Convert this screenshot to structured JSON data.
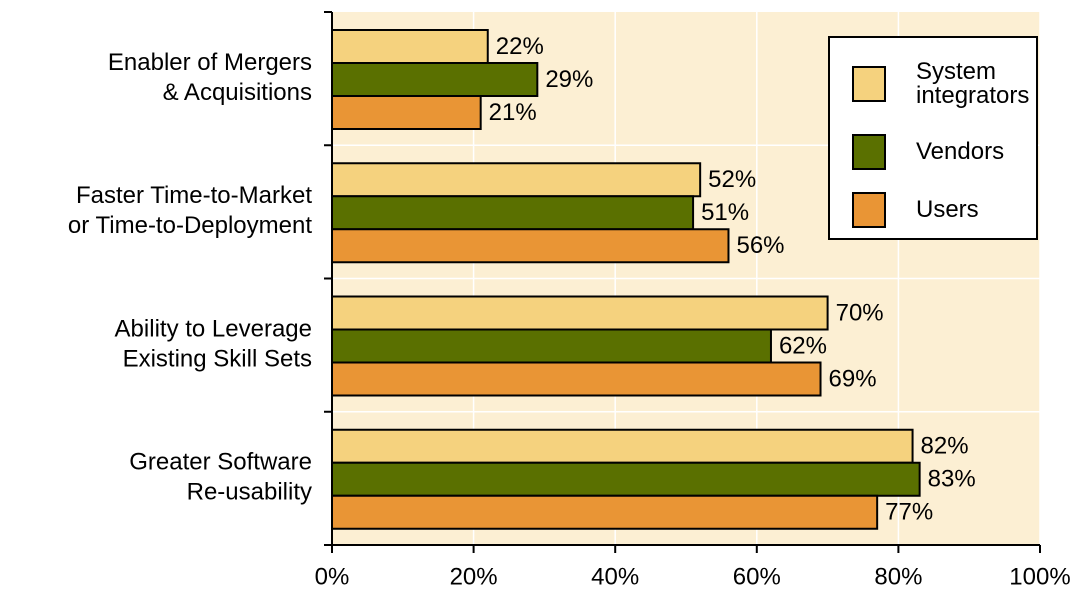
{
  "chart_data": {
    "type": "hbar",
    "categories": [
      [
        "Enabler of Mergers",
        "& Acquisitions"
      ],
      [
        "Faster Time-to-Market",
        "or Time-to-Deployment"
      ],
      [
        "Ability to Leverage",
        "Existing Skill Sets"
      ],
      [
        "Greater Software",
        "Re-usability"
      ]
    ],
    "series": [
      {
        "name": "System integrators",
        "color": "#f5d27e",
        "values": [
          22,
          52,
          70,
          82
        ],
        "value_labels": [
          "22%",
          "52%",
          "70%",
          "82%"
        ]
      },
      {
        "name": "Vendors",
        "color": "#5a7000",
        "values": [
          29,
          51,
          62,
          83
        ],
        "value_labels": [
          "29%",
          "51%",
          "62%",
          "83%"
        ]
      },
      {
        "name": "Users",
        "color": "#e99535",
        "values": [
          21,
          56,
          69,
          77
        ],
        "value_labels": [
          "21%",
          "56%",
          "69%",
          "77%"
        ]
      }
    ],
    "xlim": [
      0,
      100
    ],
    "xticks": [
      {
        "value": 0,
        "label": "0%"
      },
      {
        "value": 20,
        "label": "20%"
      },
      {
        "value": 40,
        "label": "40%"
      },
      {
        "value": 60,
        "label": "60%"
      },
      {
        "value": 80,
        "label": "80%"
      },
      {
        "value": 100,
        "label": "100%"
      }
    ],
    "grid": true,
    "legend": "upper right"
  }
}
